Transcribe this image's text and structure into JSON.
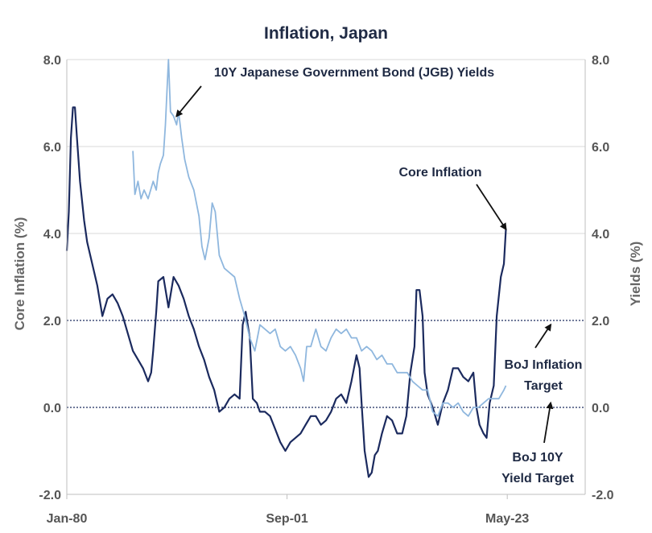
{
  "chart_data": {
    "type": "line",
    "title": "Inflation, Japan",
    "ylabel_left": "Core  Inflation  (%)",
    "ylabel_right": "Yields  (%)",
    "x_tick_labels": [
      "Jan-80",
      "Sep-01",
      "May-23"
    ],
    "y_ticks": [
      "8.0",
      "6.0",
      "4.0",
      "2.0",
      "0.0",
      "-2.0"
    ],
    "ylim": [
      -2,
      8
    ],
    "grid": true,
    "colors": {
      "core_inflation": "#1b2a5e",
      "jgb_yield": "#8fb7de",
      "grid": "#d9d9d9",
      "reference": "#1b2a5e"
    },
    "series": [
      {
        "key": "core_inflation",
        "points": [
          [
            1980.0,
            3.6
          ],
          [
            1980.2,
            4.5
          ],
          [
            1980.4,
            6.2
          ],
          [
            1980.6,
            6.9
          ],
          [
            1980.8,
            6.9
          ],
          [
            1981.0,
            6.2
          ],
          [
            1981.3,
            5.2
          ],
          [
            1981.7,
            4.3
          ],
          [
            1982.0,
            3.8
          ],
          [
            1982.5,
            3.3
          ],
          [
            1983.0,
            2.8
          ],
          [
            1983.5,
            2.1
          ],
          [
            1984.0,
            2.5
          ],
          [
            1984.5,
            2.6
          ],
          [
            1985.0,
            2.4
          ],
          [
            1985.5,
            2.1
          ],
          [
            1986.0,
            1.7
          ],
          [
            1986.5,
            1.3
          ],
          [
            1987.0,
            1.1
          ],
          [
            1987.5,
            0.9
          ],
          [
            1988.0,
            0.6
          ],
          [
            1988.3,
            0.8
          ],
          [
            1988.5,
            1.3
          ],
          [
            1988.8,
            2.2
          ],
          [
            1989.0,
            2.9
          ],
          [
            1989.5,
            3.0
          ],
          [
            1990.0,
            2.3
          ],
          [
            1990.5,
            3.0
          ],
          [
            1991.0,
            2.8
          ],
          [
            1991.5,
            2.5
          ],
          [
            1992.0,
            2.1
          ],
          [
            1992.5,
            1.8
          ],
          [
            1993.0,
            1.4
          ],
          [
            1993.5,
            1.1
          ],
          [
            1994.0,
            0.7
          ],
          [
            1994.5,
            0.4
          ],
          [
            1995.0,
            -0.1
          ],
          [
            1995.5,
            0.0
          ],
          [
            1996.0,
            0.2
          ],
          [
            1996.5,
            0.3
          ],
          [
            1997.0,
            0.2
          ],
          [
            1997.3,
            1.9
          ],
          [
            1997.6,
            2.2
          ],
          [
            1998.0,
            1.6
          ],
          [
            1998.3,
            0.2
          ],
          [
            1998.7,
            0.1
          ],
          [
            1999.0,
            -0.1
          ],
          [
            1999.5,
            -0.1
          ],
          [
            2000.0,
            -0.2
          ],
          [
            2000.5,
            -0.5
          ],
          [
            2001.0,
            -0.8
          ],
          [
            2001.5,
            -1.0
          ],
          [
            2002.0,
            -0.8
          ],
          [
            2002.5,
            -0.7
          ],
          [
            2003.0,
            -0.6
          ],
          [
            2003.5,
            -0.4
          ],
          [
            2004.0,
            -0.2
          ],
          [
            2004.5,
            -0.2
          ],
          [
            2005.0,
            -0.4
          ],
          [
            2005.5,
            -0.3
          ],
          [
            2006.0,
            -0.1
          ],
          [
            2006.5,
            0.2
          ],
          [
            2007.0,
            0.3
          ],
          [
            2007.5,
            0.1
          ],
          [
            2008.0,
            0.6
          ],
          [
            2008.5,
            1.2
          ],
          [
            2008.8,
            0.9
          ],
          [
            2009.0,
            0.1
          ],
          [
            2009.3,
            -1.0
          ],
          [
            2009.7,
            -1.6
          ],
          [
            2010.0,
            -1.5
          ],
          [
            2010.3,
            -1.1
          ],
          [
            2010.6,
            -1.0
          ],
          [
            2011.0,
            -0.6
          ],
          [
            2011.5,
            -0.2
          ],
          [
            2012.0,
            -0.3
          ],
          [
            2012.5,
            -0.6
          ],
          [
            2013.0,
            -0.6
          ],
          [
            2013.4,
            -0.2
          ],
          [
            2013.8,
            0.8
          ],
          [
            2014.2,
            1.4
          ],
          [
            2014.4,
            2.7
          ],
          [
            2014.7,
            2.7
          ],
          [
            2015.0,
            2.1
          ],
          [
            2015.2,
            0.8
          ],
          [
            2015.5,
            0.3
          ],
          [
            2016.0,
            0.0
          ],
          [
            2016.5,
            -0.4
          ],
          [
            2017.0,
            0.1
          ],
          [
            2017.5,
            0.4
          ],
          [
            2018.0,
            0.9
          ],
          [
            2018.5,
            0.9
          ],
          [
            2019.0,
            0.7
          ],
          [
            2019.5,
            0.6
          ],
          [
            2020.0,
            0.8
          ],
          [
            2020.3,
            0.0
          ],
          [
            2020.6,
            -0.4
          ],
          [
            2021.0,
            -0.6
          ],
          [
            2021.3,
            -0.7
          ],
          [
            2021.6,
            0.1
          ],
          [
            2022.0,
            0.5
          ],
          [
            2022.3,
            2.1
          ],
          [
            2022.7,
            3.0
          ],
          [
            2023.0,
            3.3
          ],
          [
            2023.2,
            4.1
          ]
        ]
      },
      {
        "key": "jgb_yield",
        "points": [
          [
            1986.5,
            5.9
          ],
          [
            1986.7,
            4.9
          ],
          [
            1987.0,
            5.2
          ],
          [
            1987.3,
            4.8
          ],
          [
            1987.6,
            5.0
          ],
          [
            1988.0,
            4.8
          ],
          [
            1988.5,
            5.2
          ],
          [
            1988.8,
            5.0
          ],
          [
            1989.0,
            5.4
          ],
          [
            1989.2,
            5.6
          ],
          [
            1989.5,
            5.8
          ],
          [
            1989.7,
            6.5
          ],
          [
            1989.9,
            7.5
          ],
          [
            1990.0,
            8.0
          ],
          [
            1990.2,
            6.8
          ],
          [
            1990.5,
            6.7
          ],
          [
            1990.8,
            6.5
          ],
          [
            1991.0,
            6.8
          ],
          [
            1991.3,
            6.2
          ],
          [
            1991.6,
            5.7
          ],
          [
            1992.0,
            5.3
          ],
          [
            1992.5,
            5.0
          ],
          [
            1993.0,
            4.4
          ],
          [
            1993.3,
            3.7
          ],
          [
            1993.6,
            3.4
          ],
          [
            1994.0,
            3.9
          ],
          [
            1994.3,
            4.7
          ],
          [
            1994.6,
            4.5
          ],
          [
            1995.0,
            3.5
          ],
          [
            1995.5,
            3.2
          ],
          [
            1996.0,
            3.1
          ],
          [
            1996.5,
            3.0
          ],
          [
            1997.0,
            2.5
          ],
          [
            1997.5,
            2.1
          ],
          [
            1998.0,
            1.6
          ],
          [
            1998.5,
            1.3
          ],
          [
            1999.0,
            1.9
          ],
          [
            1999.5,
            1.8
          ],
          [
            2000.0,
            1.7
          ],
          [
            2000.5,
            1.8
          ],
          [
            2001.0,
            1.4
          ],
          [
            2001.5,
            1.3
          ],
          [
            2002.0,
            1.4
          ],
          [
            2002.5,
            1.2
          ],
          [
            2003.0,
            0.9
          ],
          [
            2003.3,
            0.6
          ],
          [
            2003.6,
            1.4
          ],
          [
            2004.0,
            1.4
          ],
          [
            2004.5,
            1.8
          ],
          [
            2005.0,
            1.4
          ],
          [
            2005.5,
            1.3
          ],
          [
            2006.0,
            1.6
          ],
          [
            2006.5,
            1.8
          ],
          [
            2007.0,
            1.7
          ],
          [
            2007.5,
            1.8
          ],
          [
            2008.0,
            1.6
          ],
          [
            2008.5,
            1.6
          ],
          [
            2009.0,
            1.3
          ],
          [
            2009.5,
            1.4
          ],
          [
            2010.0,
            1.3
          ],
          [
            2010.5,
            1.1
          ],
          [
            2011.0,
            1.2
          ],
          [
            2011.5,
            1.0
          ],
          [
            2012.0,
            1.0
          ],
          [
            2012.5,
            0.8
          ],
          [
            2013.0,
            0.8
          ],
          [
            2013.5,
            0.8
          ],
          [
            2014.0,
            0.6
          ],
          [
            2014.5,
            0.5
          ],
          [
            2015.0,
            0.4
          ],
          [
            2015.5,
            0.4
          ],
          [
            2016.0,
            -0.1
          ],
          [
            2016.5,
            -0.2
          ],
          [
            2017.0,
            0.1
          ],
          [
            2017.5,
            0.1
          ],
          [
            2018.0,
            0.0
          ],
          [
            2018.5,
            0.1
          ],
          [
            2019.0,
            -0.1
          ],
          [
            2019.5,
            -0.2
          ],
          [
            2020.0,
            0.0
          ],
          [
            2020.5,
            0.0
          ],
          [
            2021.0,
            0.1
          ],
          [
            2021.5,
            0.2
          ],
          [
            2022.0,
            0.2
          ],
          [
            2022.5,
            0.2
          ],
          [
            2023.0,
            0.4
          ],
          [
            2023.2,
            0.5
          ]
        ]
      }
    ],
    "x_range": [
      1980.0,
      2031.0
    ],
    "x_tick_positions": [
      1980.0,
      2001.667,
      2023.333
    ],
    "reference_lines": [
      {
        "y": 2.0,
        "style": "dotted"
      },
      {
        "y": 0.0,
        "style": "dotted"
      }
    ],
    "annotations": [
      {
        "text_lines": [
          "10Y Japanese Government Bond (JGB) Yields"
        ],
        "arrow_to": [
          1990.8,
          6.7
        ]
      },
      {
        "text_lines": [
          "Core Inflation"
        ],
        "arrow_to": [
          2023.2,
          4.1
        ]
      },
      {
        "text_lines": [
          "BoJ Inflation",
          "Target"
        ],
        "arrow_to": [
          2027.6,
          1.9
        ]
      },
      {
        "text_lines": [
          "BoJ 10Y",
          "Yield Target"
        ],
        "arrow_to": [
          2027.6,
          0.1
        ]
      }
    ]
  }
}
